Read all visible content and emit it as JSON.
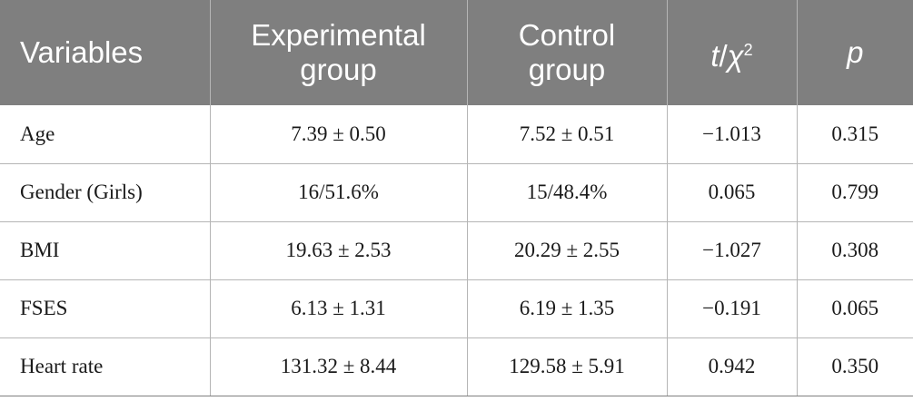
{
  "table": {
    "headers": [
      "Variables",
      "Experimental group",
      "Control group",
      "t/χ2",
      "p"
    ],
    "header_tchi": {
      "t": "t",
      "slash": "/",
      "chi": "χ",
      "sup": "2"
    },
    "rows": [
      [
        "Age",
        "7.39 ± 0.50",
        "7.52 ± 0.51",
        "−1.013",
        "0.315"
      ],
      [
        "Gender (Girls)",
        "16/51.6%",
        "15/48.4%",
        "0.065",
        "0.799"
      ],
      [
        "BMI",
        "19.63 ± 2.53",
        "20.29 ± 2.55",
        "−1.027",
        "0.308"
      ],
      [
        "FSES",
        "6.13 ± 1.31",
        "6.19 ± 1.35",
        "−0.191",
        "0.065"
      ],
      [
        "Heart rate",
        "131.32 ± 8.44",
        "129.58 ± 5.91",
        "0.942",
        "0.350"
      ]
    ]
  },
  "colors": {
    "header_bg": "#7f7f7f",
    "header_text": "#ffffff",
    "grid": "#b5b5b5"
  }
}
